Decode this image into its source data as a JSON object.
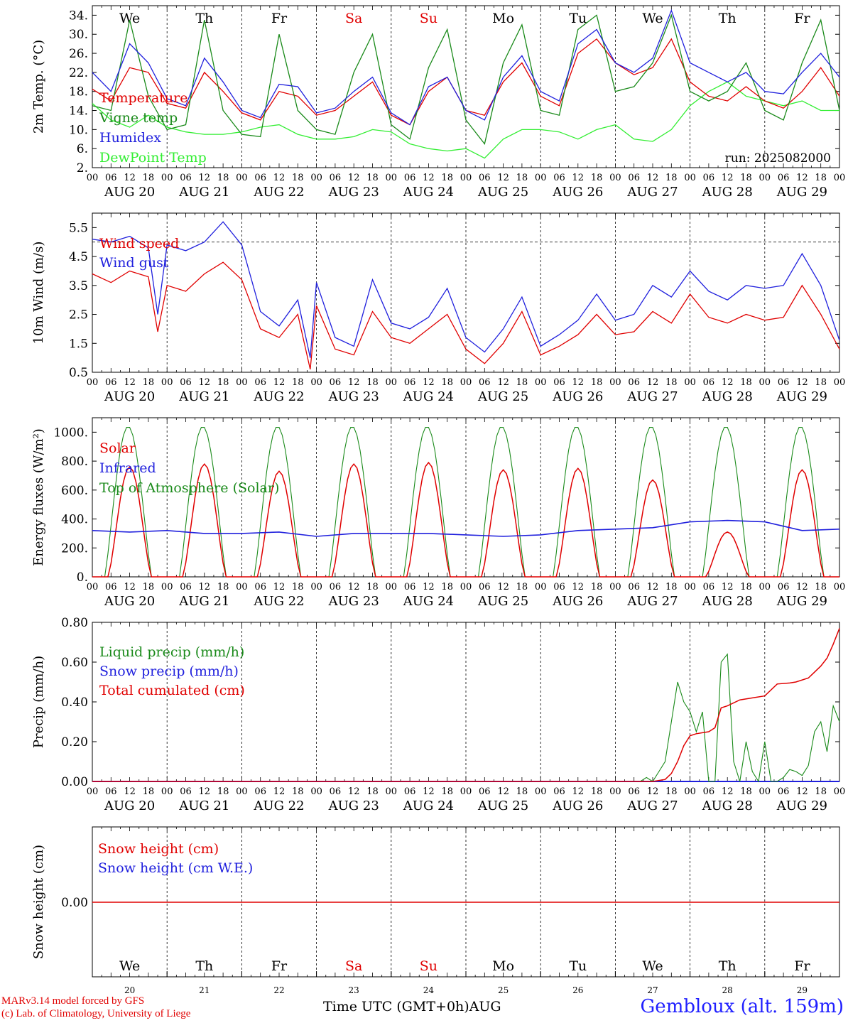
{
  "chart_data": [
    {
      "type": "line",
      "ylabel": "2m Temp. (°C)",
      "ylim": [
        2,
        36
      ],
      "yticks": [
        2,
        6,
        10,
        14,
        18,
        22,
        26,
        30,
        34
      ],
      "ytick_labels": [
        "2.",
        "6.",
        "10.",
        "14.",
        "18.",
        "22.",
        "26.",
        "30.",
        "34."
      ],
      "weekdays": [
        "We",
        "Th",
        "Fr",
        "Sa",
        "Su",
        "Mo",
        "Tu",
        "We",
        "Th",
        "Fr"
      ],
      "weekend_color": "#e00000",
      "annotation": "run: 2025082000",
      "legend": [
        {
          "name": "Temperature",
          "color": "#e00000"
        },
        {
          "name": "Vigne temp",
          "color": "#1a8a1a"
        },
        {
          "name": "Humidex",
          "color": "#2020dd"
        },
        {
          "name": "DewPoint Temp",
          "color": "#33ee33"
        }
      ],
      "series": [
        {
          "name": "Temperature",
          "color": "#e00000",
          "x": [
            0,
            6,
            12,
            18,
            24,
            30,
            36,
            42,
            48,
            54,
            60,
            66,
            72,
            78,
            84,
            90,
            96,
            102,
            108,
            114,
            120,
            126,
            132,
            138,
            144,
            150,
            156,
            162,
            168,
            174,
            180,
            186,
            192,
            198,
            204,
            210,
            216,
            222,
            228,
            234,
            240
          ],
          "y": [
            18.5,
            16,
            23,
            22,
            15.5,
            14.5,
            22,
            18,
            13.5,
            12,
            18,
            17,
            13,
            14,
            17,
            20,
            13,
            11,
            18,
            21,
            14,
            13,
            20,
            24,
            17,
            15,
            26,
            29,
            24,
            21.5,
            23,
            29,
            20,
            17,
            16,
            19,
            16,
            14.5,
            18,
            23,
            17
          ]
        },
        {
          "name": "Vigne temp",
          "color": "#1a8a1a",
          "x": [
            0,
            6,
            12,
            18,
            24,
            30,
            36,
            42,
            48,
            54,
            60,
            66,
            72,
            78,
            84,
            90,
            96,
            102,
            108,
            114,
            120,
            126,
            132,
            138,
            144,
            150,
            156,
            162,
            168,
            174,
            180,
            186,
            192,
            198,
            204,
            210,
            216,
            222,
            228,
            234,
            240
          ],
          "y": [
            15,
            14,
            33,
            17,
            10,
            11,
            33,
            14,
            9,
            8.5,
            30,
            14,
            10,
            9,
            22,
            30,
            11,
            8,
            23,
            31,
            12,
            7,
            24,
            32,
            14,
            13,
            31,
            34,
            18,
            19,
            24,
            34,
            18,
            16,
            18,
            24,
            14,
            12,
            24,
            33,
            14
          ]
        },
        {
          "name": "Humidex",
          "color": "#2020dd",
          "x": [
            0,
            6,
            12,
            18,
            24,
            30,
            36,
            42,
            48,
            54,
            60,
            66,
            72,
            78,
            84,
            90,
            96,
            102,
            108,
            114,
            120,
            126,
            132,
            138,
            144,
            150,
            156,
            162,
            168,
            174,
            180,
            186,
            192,
            198,
            204,
            210,
            216,
            222,
            228,
            234,
            240
          ],
          "y": [
            22,
            18,
            28,
            24,
            16.5,
            15,
            25,
            20,
            14,
            12.5,
            19.5,
            19,
            13.5,
            14.5,
            18,
            21,
            13.5,
            11,
            19,
            21,
            14,
            12,
            21,
            25.5,
            18,
            16,
            28,
            31,
            24,
            22,
            25,
            35,
            24,
            22,
            20,
            22,
            18,
            17.5,
            22,
            26,
            21
          ]
        },
        {
          "name": "DewPoint Temp",
          "color": "#33ee33",
          "x": [
            0,
            6,
            12,
            18,
            24,
            30,
            36,
            42,
            48,
            54,
            60,
            66,
            72,
            78,
            84,
            90,
            96,
            102,
            108,
            114,
            120,
            126,
            132,
            138,
            144,
            150,
            156,
            162,
            168,
            174,
            180,
            186,
            192,
            198,
            204,
            210,
            216,
            222,
            228,
            234,
            240
          ],
          "y": [
            15.5,
            12,
            10.5,
            13,
            10.5,
            9.5,
            9,
            9,
            9.5,
            10.5,
            11,
            9,
            8,
            8,
            8.5,
            10,
            9.5,
            7,
            6,
            5.5,
            6,
            4,
            8,
            10,
            10,
            9.5,
            8,
            10,
            11,
            8,
            7.5,
            10,
            15,
            18,
            20,
            17,
            16,
            15,
            16,
            14,
            14
          ]
        }
      ]
    },
    {
      "type": "line",
      "ylabel": "10m Wind (m/s)",
      "ylim": [
        0.5,
        6
      ],
      "yticks": [
        0.5,
        1.5,
        2.5,
        3.5,
        4.5,
        5.5
      ],
      "ytick_labels": [
        "0.5",
        "1.5",
        "2.5",
        "3.5",
        "4.5",
        "5.5"
      ],
      "reference_line": 5.0,
      "legend": [
        {
          "name": "Wind speed",
          "color": "#e00000"
        },
        {
          "name": "Wind gust",
          "color": "#2020dd"
        }
      ],
      "series": [
        {
          "name": "Wind speed",
          "color": "#e00000",
          "x": [
            0,
            6,
            12,
            18,
            21,
            24,
            30,
            36,
            42,
            48,
            54,
            60,
            66,
            70,
            72,
            78,
            84,
            90,
            96,
            102,
            108,
            114,
            120,
            126,
            132,
            138,
            144,
            150,
            156,
            162,
            168,
            174,
            180,
            186,
            192,
            198,
            204,
            210,
            216,
            222,
            228,
            234,
            240
          ],
          "y": [
            3.9,
            3.6,
            4.0,
            3.8,
            1.9,
            3.5,
            3.3,
            3.9,
            4.3,
            3.7,
            2.0,
            1.7,
            2.5,
            0.6,
            2.8,
            1.3,
            1.1,
            2.6,
            1.7,
            1.5,
            2.0,
            2.5,
            1.3,
            0.8,
            1.5,
            2.6,
            1.1,
            1.4,
            1.8,
            2.5,
            1.8,
            1.9,
            2.6,
            2.2,
            3.2,
            2.4,
            2.2,
            2.5,
            2.3,
            2.4,
            3.5,
            2.5,
            1.3
          ]
        },
        {
          "name": "Wind gust",
          "color": "#2020dd",
          "x": [
            0,
            6,
            12,
            18,
            21,
            24,
            30,
            36,
            42,
            48,
            54,
            60,
            66,
            70,
            72,
            78,
            84,
            90,
            96,
            102,
            108,
            114,
            120,
            126,
            132,
            138,
            144,
            150,
            156,
            162,
            168,
            174,
            180,
            186,
            192,
            198,
            204,
            210,
            216,
            222,
            228,
            234,
            240
          ],
          "y": [
            5.1,
            5.0,
            5.2,
            4.8,
            2.5,
            4.9,
            4.7,
            5.0,
            5.7,
            4.9,
            2.6,
            2.1,
            3.0,
            1.0,
            3.6,
            1.7,
            1.4,
            3.7,
            2.2,
            2.0,
            2.4,
            3.4,
            1.7,
            1.2,
            2.0,
            3.1,
            1.4,
            1.8,
            2.3,
            3.2,
            2.3,
            2.5,
            3.5,
            3.1,
            4.0,
            3.3,
            3.0,
            3.5,
            3.4,
            3.5,
            4.6,
            3.5,
            1.6
          ]
        }
      ]
    },
    {
      "type": "line",
      "ylabel": "Energy fluxes (W/m²)",
      "ylim": [
        0,
        1100
      ],
      "yticks": [
        0,
        200,
        400,
        600,
        800,
        1000
      ],
      "ytick_labels": [
        "0.",
        "200.",
        "400.",
        "600.",
        "800.",
        "1000."
      ],
      "legend": [
        {
          "name": "Solar",
          "color": "#e00000"
        },
        {
          "name": "Infrared",
          "color": "#2020dd"
        },
        {
          "name": "Top of Atmosphere (Solar)",
          "color": "#1a8a1a"
        }
      ],
      "solar_peaks": [
        760,
        780,
        730,
        780,
        790,
        740,
        750,
        670,
        310,
        740
      ],
      "toa_peak": 1040,
      "infrared": {
        "x": [
          0,
          12,
          24,
          36,
          48,
          60,
          72,
          84,
          96,
          108,
          120,
          132,
          144,
          156,
          168,
          180,
          192,
          204,
          216,
          228,
          240
        ],
        "y": [
          320,
          310,
          320,
          300,
          300,
          310,
          280,
          300,
          300,
          300,
          290,
          280,
          290,
          320,
          330,
          340,
          380,
          390,
          380,
          320,
          330
        ]
      }
    },
    {
      "type": "line",
      "ylabel": "Precip (mm/h)",
      "ylim": [
        0,
        0.8
      ],
      "yticks": [
        0,
        0.2,
        0.4,
        0.6,
        0.8
      ],
      "ytick_labels": [
        "0.00",
        "0.20",
        "0.40",
        "0.60",
        "0.80"
      ],
      "legend": [
        {
          "name": "Liquid precip (mm/h)",
          "color": "#1a8a1a"
        },
        {
          "name": "Snow precip (mm/h)",
          "color": "#2020dd"
        },
        {
          "name": "Total cumulated (cm)",
          "color": "#e00000"
        }
      ],
      "series": [
        {
          "name": "Liquid precip (mm/h)",
          "color": "#1a8a1a",
          "x": [
            0,
            176,
            178,
            180,
            182,
            184,
            186,
            188,
            190,
            192,
            194,
            196,
            198,
            200,
            202,
            204,
            206,
            208,
            210,
            212,
            214,
            216,
            218,
            220,
            222,
            224,
            226,
            228,
            230,
            232,
            234,
            236,
            238,
            240
          ],
          "y": [
            0,
            0,
            0.02,
            0,
            0.05,
            0.1,
            0.3,
            0.5,
            0.4,
            0.35,
            0.25,
            0.35,
            0,
            0,
            0.6,
            0.64,
            0.1,
            0,
            0.2,
            0.05,
            0,
            0.2,
            0,
            0,
            0.02,
            0.06,
            0.05,
            0.03,
            0.08,
            0.25,
            0.3,
            0.15,
            0.38,
            0.3
          ]
        },
        {
          "name": "Snow precip (mm/h)",
          "color": "#2020dd",
          "x": [
            0,
            240
          ],
          "y": [
            0,
            0
          ]
        },
        {
          "name": "Total cumulated (cm)",
          "color": "#e00000",
          "x": [
            0,
            180,
            184,
            186,
            188,
            190,
            192,
            194,
            196,
            198,
            200,
            202,
            204,
            208,
            212,
            216,
            220,
            224,
            226,
            230,
            234,
            236,
            238,
            240
          ],
          "y": [
            0,
            0,
            0.01,
            0.04,
            0.1,
            0.18,
            0.23,
            0.24,
            0.245,
            0.25,
            0.27,
            0.37,
            0.38,
            0.41,
            0.42,
            0.43,
            0.49,
            0.495,
            0.5,
            0.52,
            0.58,
            0.62,
            0.69,
            0.77
          ]
        }
      ]
    },
    {
      "type": "line",
      "ylabel": "Snow height (cm)",
      "ytick_labels": [
        "0.00"
      ],
      "legend": [
        {
          "name": "Snow height (cm)",
          "color": "#e00000"
        },
        {
          "name": "Snow height (cm W.E.)",
          "color": "#2020dd"
        }
      ],
      "series": [
        {
          "name": "Snow height (cm)",
          "color": "#e00000",
          "x": [
            0,
            240
          ],
          "y": [
            0,
            0
          ]
        }
      ]
    }
  ],
  "hour_labels": [
    "00",
    "06",
    "12",
    "18"
  ],
  "end_hour_label": "00",
  "date_labels": [
    "AUG 20",
    "AUG 21",
    "AUG 22",
    "AUG 23",
    "AUG 24",
    "AUG 25",
    "AUG 26",
    "AUG 27",
    "AUG 28",
    "AUG 29"
  ],
  "bottom_weekdays": [
    "We",
    "Th",
    "Fr",
    "Sa",
    "Su",
    "Mo",
    "Tu",
    "We",
    "Th",
    "Fr"
  ],
  "bottom_days": [
    "20",
    "21",
    "22",
    "23",
    "24",
    "25",
    "26",
    "27",
    "28",
    "29"
  ],
  "xlabel_main": "Time UTC (GMT+0h)",
  "xlabel_month": "AUG",
  "credit_line1": "MARv3.14 model forced by GFS",
  "credit_line2": "(c) Lab. of Climatology, University of Liege",
  "station": "Gembloux (alt. 159m)"
}
